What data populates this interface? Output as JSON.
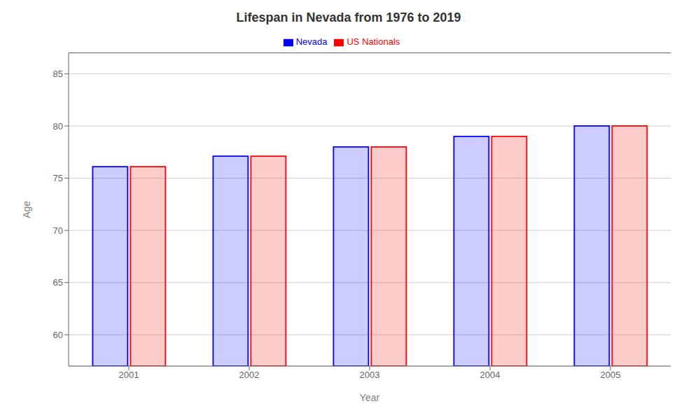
{
  "chart_data": {
    "type": "bar",
    "title": "Lifespan in Nevada from 1976 to 2019",
    "xlabel": "Year",
    "ylabel": "Age",
    "categories": [
      "2001",
      "2002",
      "2003",
      "2004",
      "2005"
    ],
    "series": [
      {
        "name": "Nevada",
        "color": "#0000ff",
        "values": [
          76.1,
          77.1,
          78.0,
          79.0,
          80.0
        ]
      },
      {
        "name": "US Nationals",
        "color": "#ff0000",
        "values": [
          76.1,
          77.1,
          78.0,
          79.0,
          80.0
        ]
      }
    ],
    "ylim": [
      57,
      87
    ],
    "yticks": [
      60,
      65,
      70,
      75,
      80,
      85
    ],
    "grid": true,
    "legend": "top"
  }
}
